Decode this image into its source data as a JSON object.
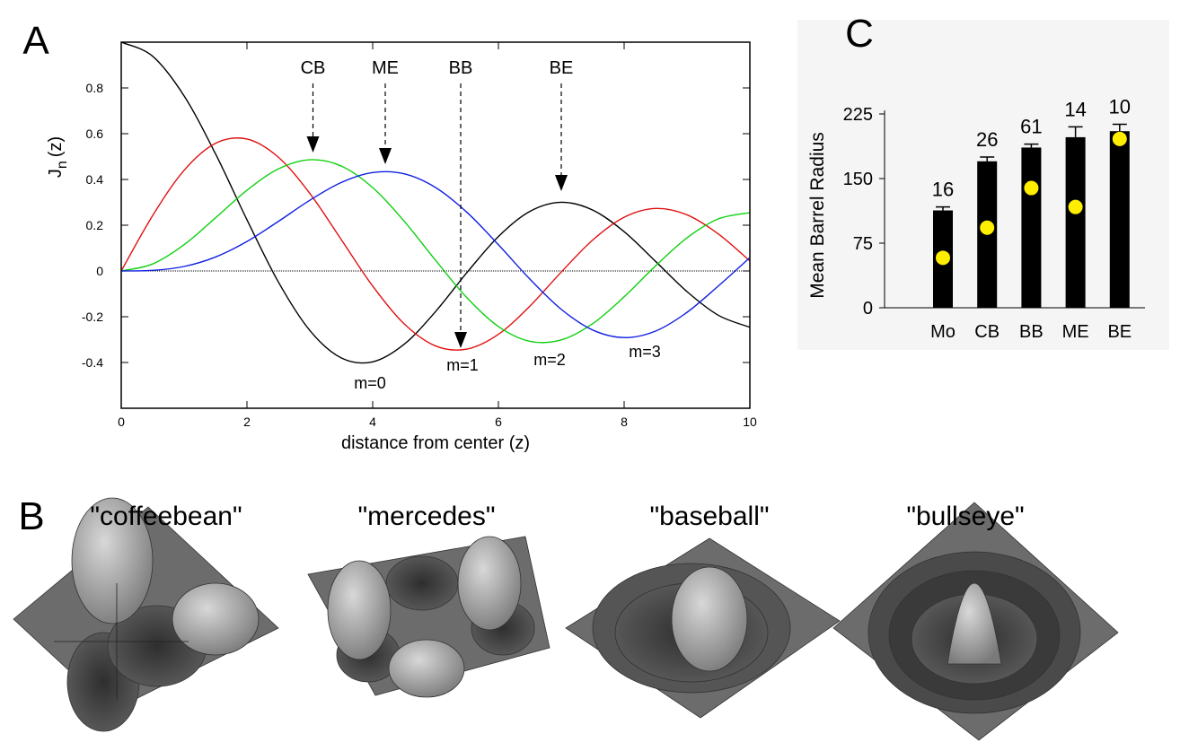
{
  "chart_data": [
    {
      "panel_label": "A",
      "type": "line",
      "x_label": "distance from center (z)",
      "y_label": {
        "main": "J",
        "sub": "n",
        "suffix": "(z)"
      },
      "x": [
        0,
        0.5,
        1,
        1.5,
        2,
        2.5,
        3,
        3.5,
        4,
        4.5,
        5,
        5.5,
        6,
        6.5,
        7,
        7.5,
        8,
        8.5,
        9,
        9.5,
        10
      ],
      "series": [
        {
          "name": "m=0",
          "color": "#000000",
          "values": [
            1,
            0.9385,
            0.7652,
            0.5118,
            0.2239,
            -0.0484,
            -0.2601,
            -0.3801,
            -0.3971,
            -0.3205,
            -0.1776,
            -0.0068,
            0.1506,
            0.2601,
            0.3001,
            0.2663,
            0.1717,
            0.0419,
            -0.0903,
            -0.1939,
            -0.2459
          ]
        },
        {
          "name": "m=1",
          "color": "#e01010",
          "values": [
            0,
            0.2423,
            0.4401,
            0.5579,
            0.5767,
            0.4971,
            0.3391,
            0.1374,
            -0.066,
            -0.2311,
            -0.3276,
            -0.3414,
            -0.2767,
            -0.1538,
            -0.0047,
            0.1352,
            0.2346,
            0.2731,
            0.2453,
            0.1613,
            0.0435
          ]
        },
        {
          "name": "m=2",
          "color": "#10d010",
          "values": [
            0,
            0.0306,
            0.1149,
            0.2321,
            0.3528,
            0.4461,
            0.4861,
            0.4586,
            0.3641,
            0.2178,
            0.0466,
            -0.1173,
            -0.2429,
            -0.3074,
            -0.3014,
            -0.2303,
            -0.113,
            0.0223,
            0.1448,
            0.2279,
            0.2546
          ]
        },
        {
          "name": "m=3",
          "color": "#1020e0",
          "values": [
            0,
            0.0026,
            0.0196,
            0.061,
            0.1289,
            0.2166,
            0.3091,
            0.3868,
            0.4302,
            0.4247,
            0.3648,
            0.2561,
            0.1148,
            -0.0353,
            -0.1676,
            -0.2581,
            -0.2911,
            -0.2626,
            -0.1809,
            -0.0653,
            0.0584
          ]
        }
      ],
      "annotations": [
        {
          "text": "CB",
          "x": 3.05
        },
        {
          "text": "ME",
          "x": 4.2
        },
        {
          "text": "BB",
          "x": 5.4
        },
        {
          "text": "BE",
          "x": 7.0
        }
      ],
      "xlim": [
        0,
        10
      ],
      "xticks": [
        0,
        2,
        4,
        6,
        8,
        10
      ],
      "ylim": [
        -0.6,
        1.0
      ],
      "yticks": [
        -0.4,
        -0.2,
        0,
        0.2,
        0.4,
        0.6,
        0.8
      ]
    },
    {
      "panel_label": "C",
      "type": "bar",
      "y_label": "Mean Barrel Radius",
      "categories": [
        "Mo",
        "CB",
        "BB",
        "ME",
        "BE"
      ],
      "values": [
        113,
        170,
        186,
        198,
        205
      ],
      "errors": [
        4,
        5,
        4,
        12,
        8
      ],
      "color": "#000000",
      "counts": [
        16,
        26,
        61,
        14,
        10
      ],
      "dot_values": [
        58,
        93,
        139,
        117,
        196
      ],
      "dot_color": "#ffee00",
      "ylim": [
        0,
        225
      ],
      "yticks": [
        0,
        75,
        150,
        225
      ]
    }
  ],
  "panel_b": {
    "panel_label": "B",
    "titles": [
      "\"coffeebean\"",
      "\"mercedes\"",
      "\"baseball\"",
      "\"bullseye\""
    ]
  }
}
